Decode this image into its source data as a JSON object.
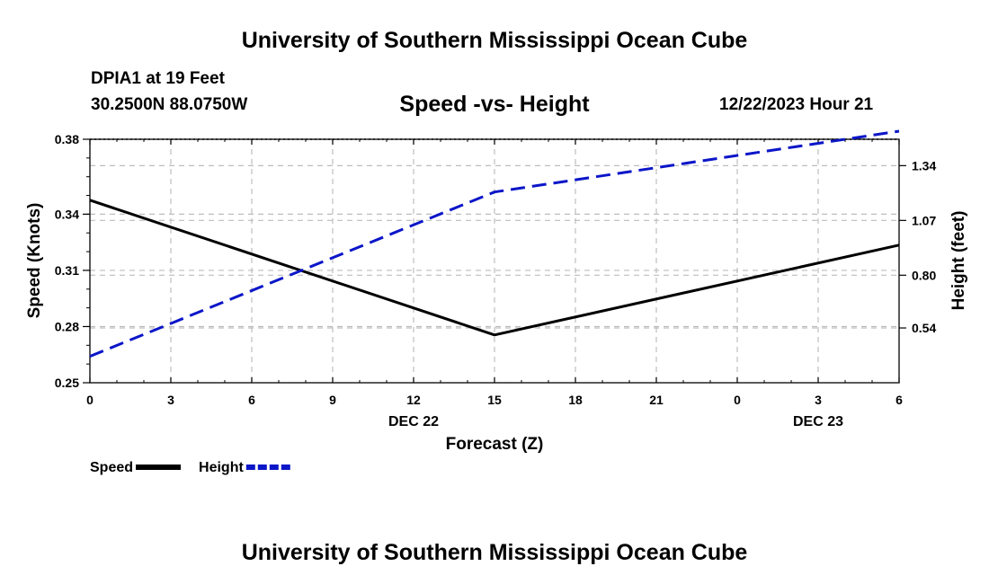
{
  "header": {
    "title": "University of Southern Mississippi Ocean Cube",
    "station": "DPIA1 at 19 Feet",
    "coords": "30.2500N  88.0750W",
    "datetime": "12/22/2023 Hour 21"
  },
  "footer": {
    "title": "University of Southern Mississippi Ocean Cube"
  },
  "chart_data": {
    "type": "line",
    "title": "Speed -vs- Height",
    "xlabel": "Forecast (Z)",
    "ylabel": "Speed (Knots)",
    "y2label": "Height (feet)",
    "x_ticks": [
      "0",
      "3",
      "6",
      "9",
      "12",
      "15",
      "18",
      "21",
      "0",
      "3",
      "6"
    ],
    "date_labels": [
      {
        "label": "DEC 22",
        "tick_index": 4
      },
      {
        "label": "DEC 23",
        "tick_index": 9
      }
    ],
    "xlim": [
      0,
      30
    ],
    "ylim": [
      0.25,
      0.38
    ],
    "y_ticks": [
      "0.25",
      "0.28",
      "0.31",
      "0.34",
      "0.38"
    ],
    "y2lim": [
      0.27,
      1.47
    ],
    "y2_ticks": [
      "0.54",
      "0.80",
      "1.07",
      "1.34"
    ],
    "grid": true,
    "legend_position": "bottom-left",
    "series": [
      {
        "name": "Speed",
        "axis": "left",
        "color": "#000000",
        "dashed": false,
        "x": [
          0,
          15,
          30
        ],
        "values": [
          0.3475,
          0.2755,
          0.3235
        ]
      },
      {
        "name": "Height",
        "axis": "right",
        "color": "#0b16c8",
        "dashed": true,
        "x": [
          0,
          15,
          30
        ],
        "values": [
          0.4,
          1.21,
          1.51
        ]
      }
    ]
  }
}
